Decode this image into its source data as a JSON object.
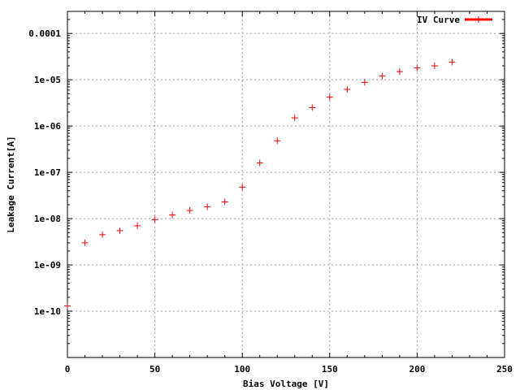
{
  "chart_data": {
    "type": "scatter",
    "title": "",
    "xlabel": "Bias Voltage [V]",
    "ylabel": "Leakage Current[A]",
    "xlim": [
      0,
      250
    ],
    "ylim": [
      1e-11,
      0.0003
    ],
    "yscale": "log",
    "grid": true,
    "legend_position": "top-right",
    "x_ticks": [
      {
        "value": 0,
        "label": "0"
      },
      {
        "value": 50,
        "label": "50"
      },
      {
        "value": 100,
        "label": "100"
      },
      {
        "value": 150,
        "label": "150"
      },
      {
        "value": 200,
        "label": "200"
      },
      {
        "value": 250,
        "label": "250"
      }
    ],
    "y_ticks": [
      {
        "value": 1e-10,
        "label": "1e-10"
      },
      {
        "value": 1e-09,
        "label": "1e-09"
      },
      {
        "value": 1e-08,
        "label": "1e-08"
      },
      {
        "value": 1e-07,
        "label": "1e-07"
      },
      {
        "value": 1e-06,
        "label": "1e-06"
      },
      {
        "value": 1e-05,
        "label": "1e-05"
      },
      {
        "value": 0.0001,
        "label": "0.0001"
      }
    ],
    "series": [
      {
        "name": "IV Curve",
        "color": "#ff0000",
        "marker": "plus",
        "x": [
          0,
          10,
          20,
          30,
          40,
          50,
          60,
          70,
          80,
          90,
          100,
          110,
          120,
          130,
          140,
          150,
          160,
          170,
          180,
          190,
          200,
          210,
          220
        ],
        "y": [
          1.3e-10,
          3e-09,
          4.5e-09,
          5.5e-09,
          7e-09,
          9.5e-09,
          1.2e-08,
          1.5e-08,
          1.8e-08,
          2.3e-08,
          4.8e-08,
          1.6e-07,
          4.8e-07,
          1.5e-06,
          2.5e-06,
          4.2e-06,
          6.2e-06,
          8.8e-06,
          1.2e-05,
          1.5e-05,
          1.8e-05,
          2e-05,
          2.4e-05
        ]
      }
    ]
  }
}
